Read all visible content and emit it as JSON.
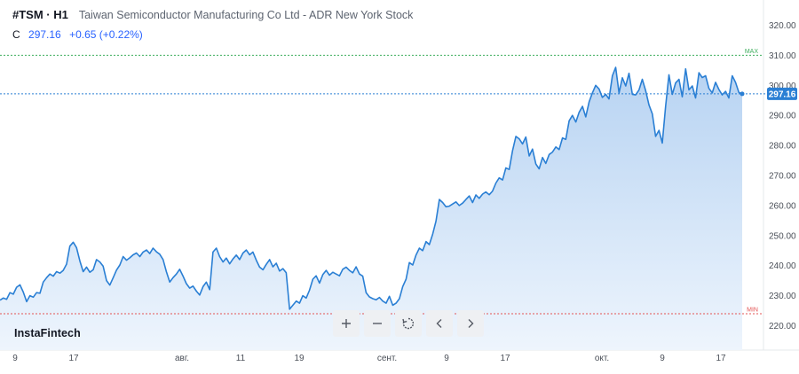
{
  "header": {
    "symbol": "#TSM · H1",
    "name": "Taiwan Semiconductor Manufacturing Co Ltd - ADR New York Stock",
    "close_label": "C",
    "close_value": "297.16",
    "change": "+0.65 (+0.22%)"
  },
  "logo": "InstaFintech",
  "toolbar": {
    "zoom_in_icon": "plus-icon",
    "zoom_out_icon": "minus-icon",
    "reset_icon": "reset-icon",
    "prev_icon": "chevron-left-icon",
    "next_icon": "chevron-right-icon"
  },
  "colors": {
    "line": "#2a7fd4",
    "area_top": "#b7d3f2",
    "area_bottom": "#eef5fd",
    "price_badge": "#2a7fd4",
    "max_line": "#3fae5e",
    "min_line": "#e35454",
    "current_line": "#2a7fd4"
  },
  "chart_data": {
    "type": "area",
    "symbol": "#TSM",
    "timeframe": "H1",
    "ylim": [
      215,
      325
    ],
    "y_ticks": [
      "320.00",
      "310.00",
      "300.00",
      "290.00",
      "280.00",
      "270.00",
      "260.00",
      "250.00",
      "240.00",
      "230.00",
      "220.00"
    ],
    "x_ticks": [
      "9",
      "17",
      "авг.",
      "11",
      "19",
      "сент.",
      "9",
      "17",
      "окт.",
      "9",
      "17"
    ],
    "max_label": "MAX",
    "min_label": "MIN",
    "max_value": 310,
    "min_value": 224,
    "current_value": 297.16,
    "current_label": "297.16",
    "grid": false,
    "series": [
      {
        "values": [
          228.5,
          229.2,
          228.8,
          231.0,
          230.5,
          232.8,
          233.6,
          231.2,
          228.0,
          230.0,
          229.5,
          231.0,
          230.8,
          234.5,
          236.0,
          237.2,
          236.5,
          238.0,
          237.5,
          238.4,
          240.5,
          246.5,
          247.8,
          246.0,
          241.5,
          238.0,
          239.5,
          237.8,
          238.6,
          242.0,
          241.2,
          239.8,
          235.0,
          233.5,
          236.0,
          238.5,
          240.2,
          243.0,
          241.8,
          242.6,
          243.6,
          244.2,
          243.0,
          244.5,
          245.2,
          244.0,
          245.8,
          244.6,
          243.8,
          242.0,
          238.0,
          234.5,
          236.0,
          237.2,
          238.8,
          236.5,
          234.0,
          232.5,
          233.2,
          231.5,
          230.2,
          233.0,
          234.5,
          232.0,
          244.5,
          245.8,
          243.0,
          241.2,
          242.5,
          240.6,
          242.2,
          243.5,
          242.0,
          244.2,
          245.2,
          243.6,
          244.5,
          241.8,
          239.5,
          238.6,
          240.4,
          242.0,
          239.6,
          240.8,
          238.2,
          239.0,
          237.6,
          225.5,
          226.8,
          228.2,
          227.5,
          230.0,
          229.2,
          231.8,
          235.5,
          236.6,
          234.2,
          237.0,
          238.4,
          236.8,
          237.8,
          237.2,
          236.6,
          238.8,
          239.5,
          238.4,
          237.6,
          239.6,
          237.2,
          236.5,
          231.0,
          229.6,
          229.0,
          228.6,
          229.4,
          228.2,
          227.5,
          229.8,
          226.8,
          227.5,
          229.0,
          233.0,
          235.5,
          241.0,
          240.2,
          243.5,
          245.8,
          245.0,
          248.0,
          247.0,
          250.5,
          254.8,
          262.0,
          261.0,
          259.6,
          259.8,
          260.5,
          261.2,
          260.0,
          260.8,
          262.0,
          263.2,
          261.0,
          263.5,
          262.4,
          263.8,
          264.5,
          263.6,
          264.8,
          267.5,
          269.2,
          268.5,
          272.5,
          272.0,
          278.2,
          283.0,
          282.2,
          280.5,
          282.8,
          276.5,
          278.8,
          273.8,
          272.2,
          276.0,
          274.0,
          277.0,
          277.8,
          279.5,
          278.6,
          282.5,
          282.0,
          288.2,
          290.0,
          287.8,
          291.0,
          293.0,
          289.5,
          294.5,
          297.5,
          300.0,
          298.8,
          296.0,
          297.0,
          295.5,
          303.2,
          306.0,
          297.5,
          302.5,
          299.8,
          304.0,
          297.0,
          296.8,
          298.5,
          302.0,
          298.2,
          293.5,
          290.5,
          283.0,
          285.0,
          280.8,
          293.2,
          303.5,
          297.0,
          300.8,
          302.0,
          296.2,
          305.5,
          298.5,
          299.8,
          295.8,
          304.2,
          302.6,
          303.2,
          299.0,
          297.5,
          301.0,
          298.6,
          296.8,
          298.0,
          295.8,
          303.2,
          301.0,
          297.6,
          297.16
        ]
      }
    ]
  }
}
